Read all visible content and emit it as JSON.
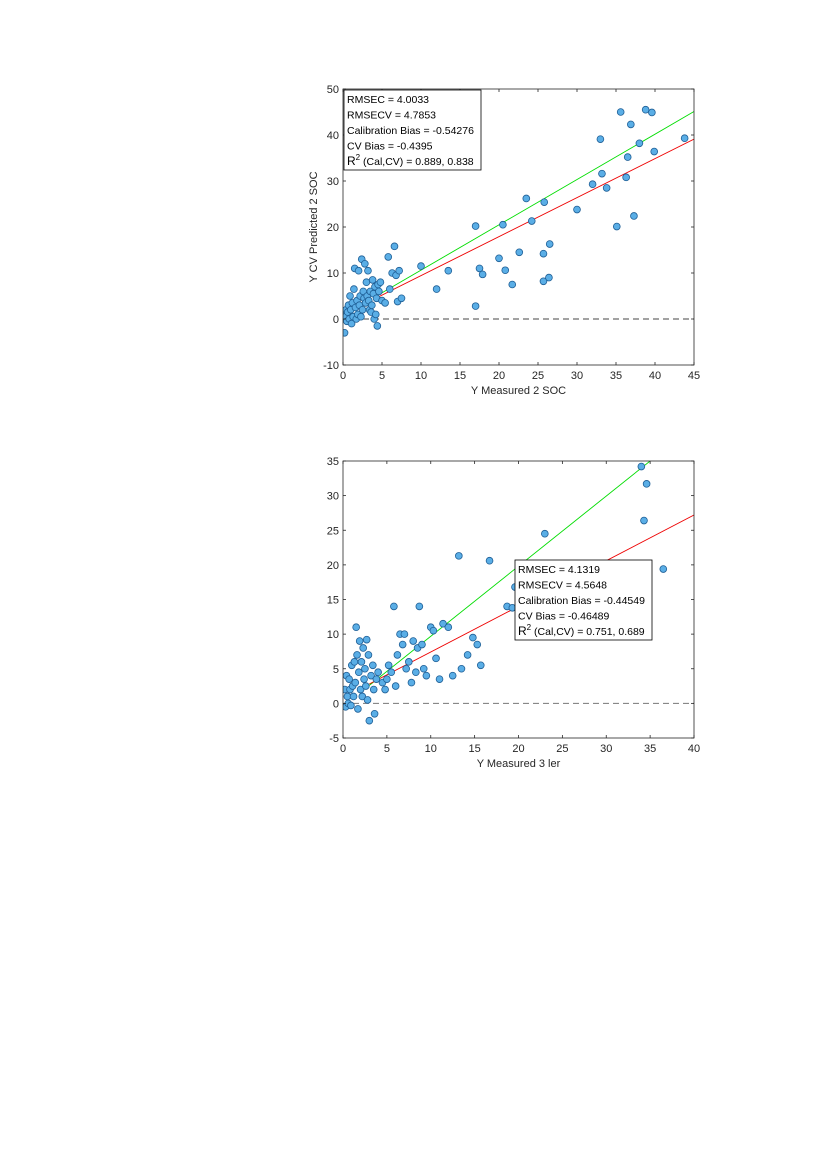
{
  "chart_data": [
    {
      "type": "scatter",
      "xlabel": "Y Measured 2 SOC",
      "ylabel": "Y CV Predicted 2 SOC",
      "xlim": [
        0,
        45
      ],
      "ylim": [
        -10,
        50
      ],
      "xticks": [
        0,
        5,
        10,
        15,
        20,
        25,
        30,
        35,
        40,
        45
      ],
      "yticks": [
        -10,
        0,
        10,
        20,
        30,
        40,
        50
      ],
      "grid": false,
      "reference_line": {
        "y": 0,
        "style": "dashed",
        "color": "#444444"
      },
      "fit_lines": [
        {
          "color": "#00dd00",
          "x": [
            4.3,
            45
          ],
          "y": [
            5.0,
            45.1
          ]
        },
        {
          "color": "#ee0000",
          "x": [
            4.3,
            45
          ],
          "y": [
            4.6,
            39.1
          ]
        }
      ],
      "stats": {
        "rmsec": "RMSEC = 4.0033",
        "rmsecv": "RMSECV = 4.7853",
        "cal_bias": "Calibration Bias = -0.54276",
        "cv_bias": "CV Bias = -0.4395",
        "r2_prefix": "R",
        "r2_sup": "2",
        "r2_rest": " (Cal,CV) = 0.889, 0.838"
      },
      "stats_box_placement": "top-left",
      "marker_color": "#5aaee6",
      "points": [
        [
          0.1,
          1.0
        ],
        [
          0.2,
          -3.0
        ],
        [
          0.3,
          0.5
        ],
        [
          0.4,
          2.0
        ],
        [
          0.5,
          -0.5
        ],
        [
          0.6,
          1.5
        ],
        [
          0.7,
          3.0
        ],
        [
          0.8,
          0.0
        ],
        [
          0.9,
          5.0
        ],
        [
          1.0,
          2.0
        ],
        [
          1.1,
          -1.0
        ],
        [
          1.2,
          3.5
        ],
        [
          1.3,
          0.5
        ],
        [
          1.4,
          6.5
        ],
        [
          1.5,
          11.0
        ],
        [
          1.6,
          2.5
        ],
        [
          1.7,
          0.0
        ],
        [
          1.8,
          4.0
        ],
        [
          1.9,
          1.0
        ],
        [
          2.0,
          10.5
        ],
        [
          2.1,
          3.0
        ],
        [
          2.2,
          5.0
        ],
        [
          2.3,
          0.5
        ],
        [
          2.4,
          13.0
        ],
        [
          2.5,
          2.0
        ],
        [
          2.6,
          6.0
        ],
        [
          2.7,
          4.5
        ],
        [
          2.8,
          12.0
        ],
        [
          2.9,
          3.5
        ],
        [
          3.0,
          8.0
        ],
        [
          3.1,
          5.0
        ],
        [
          3.2,
          10.5
        ],
        [
          3.3,
          4.0
        ],
        [
          3.4,
          2.0
        ],
        [
          3.5,
          6.0
        ],
        [
          3.6,
          1.5
        ],
        [
          3.7,
          3.0
        ],
        [
          3.8,
          8.5
        ],
        [
          3.9,
          5.5
        ],
        [
          4.0,
          0.0
        ],
        [
          4.1,
          7.0
        ],
        [
          4.2,
          1.0
        ],
        [
          4.3,
          4.5
        ],
        [
          4.4,
          -1.5
        ],
        [
          4.5,
          7.5
        ],
        [
          4.6,
          6.0
        ],
        [
          4.8,
          8.0
        ],
        [
          5.0,
          4.0
        ],
        [
          5.4,
          3.5
        ],
        [
          5.8,
          13.5
        ],
        [
          6.0,
          6.5
        ],
        [
          6.3,
          10.0
        ],
        [
          6.6,
          15.8
        ],
        [
          6.8,
          9.5
        ],
        [
          7.0,
          3.8
        ],
        [
          7.2,
          10.5
        ],
        [
          7.5,
          4.5
        ],
        [
          10.0,
          11.5
        ],
        [
          12.0,
          6.5
        ],
        [
          13.5,
          10.5
        ],
        [
          17.0,
          20.2
        ],
        [
          17.0,
          2.8
        ],
        [
          17.5,
          11.0
        ],
        [
          17.9,
          9.7
        ],
        [
          20.0,
          13.2
        ],
        [
          20.5,
          20.5
        ],
        [
          20.8,
          10.6
        ],
        [
          21.7,
          7.5
        ],
        [
          22.6,
          14.5
        ],
        [
          23.5,
          26.2
        ],
        [
          24.2,
          21.3
        ],
        [
          25.7,
          14.2
        ],
        [
          25.8,
          25.4
        ],
        [
          25.7,
          8.2
        ],
        [
          26.4,
          9.0
        ],
        [
          26.5,
          16.3
        ],
        [
          30.0,
          23.8
        ],
        [
          32.0,
          29.3
        ],
        [
          33.0,
          39.1
        ],
        [
          33.2,
          31.6
        ],
        [
          33.8,
          28.5
        ],
        [
          35.1,
          20.1
        ],
        [
          35.6,
          45.0
        ],
        [
          36.3,
          30.8
        ],
        [
          36.5,
          35.2
        ],
        [
          36.9,
          42.3
        ],
        [
          37.3,
          22.4
        ],
        [
          38.0,
          38.2
        ],
        [
          38.8,
          45.5
        ],
        [
          39.6,
          44.9
        ],
        [
          39.9,
          36.4
        ],
        [
          43.8,
          39.3
        ]
      ]
    },
    {
      "type": "scatter",
      "xlabel": "Y Measured 3 ler",
      "ylabel": "",
      "xlim": [
        0,
        40
      ],
      "ylim": [
        -5,
        35
      ],
      "xticks": [
        0,
        5,
        10,
        15,
        20,
        25,
        30,
        35,
        40
      ],
      "yticks": [
        -5,
        0,
        5,
        10,
        15,
        20,
        25,
        30,
        35
      ],
      "grid": false,
      "reference_line": {
        "y": 0,
        "style": "dashed",
        "color": "#777777"
      },
      "fit_lines": [
        {
          "color": "#00dd00",
          "x": [
            3.0,
            35.0
          ],
          "y": [
            2.6,
            35.0
          ]
        },
        {
          "color": "#ee0000",
          "x": [
            3.0,
            40.0
          ],
          "y": [
            2.8,
            27.2
          ]
        }
      ],
      "stats": {
        "rmsec": "RMSEC = 4.1319",
        "rmsecv": "RMSECV = 4.5648",
        "cal_bias": "Calibration Bias = -0.44549",
        "cv_bias": "CV Bias = -0.46489",
        "r2_prefix": "R",
        "r2_sup": "2",
        "r2_rest": " (Cal,CV) = 0.751, 0.689"
      },
      "stats_box_placement": "center-right",
      "marker_color": "#5aaee6",
      "points": [
        [
          0.2,
          2.0
        ],
        [
          0.3,
          -0.5
        ],
        [
          0.4,
          4.0
        ],
        [
          0.5,
          1.0
        ],
        [
          0.6,
          0.0
        ],
        [
          0.7,
          3.5
        ],
        [
          0.8,
          2.0
        ],
        [
          0.9,
          -0.3
        ],
        [
          1.0,
          5.5
        ],
        [
          1.1,
          2.5
        ],
        [
          1.2,
          1.0
        ],
        [
          1.3,
          6.0
        ],
        [
          1.4,
          3.0
        ],
        [
          1.5,
          11.0
        ],
        [
          1.6,
          7.0
        ],
        [
          1.7,
          -0.8
        ],
        [
          1.8,
          4.5
        ],
        [
          1.9,
          9.0
        ],
        [
          2.0,
          2.0
        ],
        [
          2.1,
          6.0
        ],
        [
          2.2,
          1.0
        ],
        [
          2.3,
          8.0
        ],
        [
          2.4,
          3.5
        ],
        [
          2.5,
          5.0
        ],
        [
          2.6,
          2.5
        ],
        [
          2.7,
          9.2
        ],
        [
          2.8,
          0.5
        ],
        [
          2.9,
          7.0
        ],
        [
          3.0,
          -2.5
        ],
        [
          3.2,
          4.0
        ],
        [
          3.4,
          5.5
        ],
        [
          3.5,
          2.0
        ],
        [
          3.6,
          -1.5
        ],
        [
          3.8,
          3.5
        ],
        [
          4.0,
          4.5
        ],
        [
          4.5,
          3.0
        ],
        [
          4.8,
          2.0
        ],
        [
          5.0,
          3.5
        ],
        [
          5.2,
          5.5
        ],
        [
          5.5,
          4.5
        ],
        [
          5.8,
          14.0
        ],
        [
          6.0,
          2.5
        ],
        [
          6.2,
          7.0
        ],
        [
          6.5,
          10.0
        ],
        [
          6.8,
          8.5
        ],
        [
          7.0,
          10.0
        ],
        [
          7.2,
          5.0
        ],
        [
          7.5,
          6.0
        ],
        [
          7.8,
          3.0
        ],
        [
          8.0,
          9.0
        ],
        [
          8.3,
          4.5
        ],
        [
          8.5,
          8.0
        ],
        [
          8.7,
          14.0
        ],
        [
          9.0,
          8.5
        ],
        [
          9.2,
          5.0
        ],
        [
          9.5,
          4.0
        ],
        [
          10.0,
          11.0
        ],
        [
          10.3,
          10.5
        ],
        [
          10.6,
          6.5
        ],
        [
          11.0,
          3.5
        ],
        [
          11.4,
          11.5
        ],
        [
          12.0,
          11.0
        ],
        [
          12.5,
          4.0
        ],
        [
          13.2,
          21.3
        ],
        [
          13.5,
          5.0
        ],
        [
          14.2,
          7.0
        ],
        [
          14.8,
          9.5
        ],
        [
          15.3,
          8.5
        ],
        [
          15.7,
          5.5
        ],
        [
          16.7,
          20.6
        ],
        [
          18.7,
          14.0
        ],
        [
          19.3,
          13.8
        ],
        [
          19.6,
          16.8
        ],
        [
          23.0,
          24.5
        ],
        [
          34.0,
          34.2
        ],
        [
          34.3,
          26.4
        ],
        [
          34.6,
          31.7
        ],
        [
          36.5,
          19.4
        ]
      ]
    }
  ]
}
